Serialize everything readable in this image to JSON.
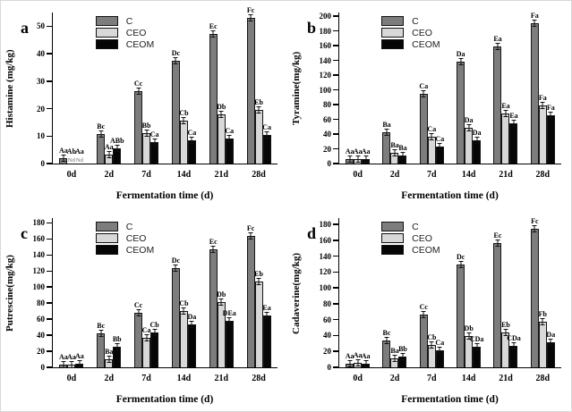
{
  "figure": {
    "colors": {
      "C": "#7d7d7d",
      "CEO": "#d8d8d8",
      "CEOM": "#060606"
    },
    "legend_entries": [
      "C",
      "CEO",
      "CEOM"
    ],
    "legend_position": "top-left-inside",
    "grid": false,
    "error_bars": "small SD caps on bar tops"
  },
  "chart_data": [
    {
      "type": "bar",
      "panel": "a",
      "ylabel": "Histamine (mg/kg)",
      "xlabel": "Fermentation time (d)",
      "categories": [
        "0d",
        "2d",
        "7d",
        "14d",
        "21d",
        "28d"
      ],
      "ylim": [
        0,
        55
      ],
      "yticks": [
        0,
        10,
        20,
        30,
        40,
        50
      ],
      "series": [
        {
          "name": "C",
          "values": [
            2.1,
            10.8,
            26.3,
            37.3,
            47.2,
            53.2
          ],
          "labels": [
            "Aa",
            "Bc",
            "Cc",
            "Dc",
            "Ec",
            "Fc"
          ]
        },
        {
          "name": "CEO",
          "values": [
            0,
            3.2,
            11.0,
            15.5,
            18.0,
            19.5
          ],
          "labels": [
            "Ab",
            "Aa",
            "Bb",
            "Cb",
            "Db",
            "Eb"
          ],
          "nd": [
            "Nd",
            "",
            "",
            "",
            "",
            ""
          ]
        },
        {
          "name": "CEOM",
          "values": [
            0,
            5.4,
            7.8,
            8.5,
            9.2,
            10.5
          ],
          "labels": [
            "Aa",
            "ABb",
            "Ca",
            "Ca",
            "Ca",
            "Ca"
          ],
          "nd": [
            "Nd",
            "",
            "",
            "",
            "",
            ""
          ]
        }
      ]
    },
    {
      "type": "bar",
      "panel": "b",
      "ylabel": "Tyramine(mg/kg)",
      "xlabel": "Fermentation time (d)",
      "categories": [
        "0d",
        "2d",
        "7d",
        "14d",
        "21d",
        "28d"
      ],
      "ylim": [
        0,
        205
      ],
      "yticks": [
        0,
        20,
        40,
        60,
        80,
        100,
        120,
        140,
        160,
        180,
        200
      ],
      "series": [
        {
          "name": "C",
          "values": [
            6,
            42,
            95,
            138,
            159,
            190
          ],
          "labels": [
            "Aa",
            "Ba",
            "Ca",
            "Da",
            "Ea",
            "Fa"
          ]
        },
        {
          "name": "CEO",
          "values": [
            6,
            15,
            36,
            49,
            68,
            79
          ],
          "labels": [
            "Aa",
            "Ba",
            "Ca",
            "Da",
            "Ea",
            "Fa"
          ]
        },
        {
          "name": "CEOM",
          "values": [
            6,
            11,
            23,
            31,
            54,
            66
          ],
          "labels": [
            "Aa",
            "Ba",
            "Ca",
            "Da",
            "Ea",
            "Fa"
          ]
        }
      ]
    },
    {
      "type": "bar",
      "panel": "c",
      "ylabel": "Putrescine(mg/kg)",
      "xlabel": "Fermentation time (d)",
      "categories": [
        "0d",
        "2d",
        "7d",
        "14d",
        "21d",
        "28d"
      ],
      "ylim": [
        0,
        186
      ],
      "yticks": [
        0,
        20,
        40,
        60,
        80,
        100,
        120,
        140,
        160,
        180
      ],
      "series": [
        {
          "name": "C",
          "values": [
            3,
            42,
            68,
            124,
            147,
            164
          ],
          "labels": [
            "Aa",
            "Bc",
            "Cc",
            "Dc",
            "Ec",
            "Fc"
          ]
        },
        {
          "name": "CEO",
          "values": [
            3.5,
            10,
            37,
            70,
            81,
            107
          ],
          "labels": [
            "Aa",
            "Ba",
            "Ca",
            "Cb",
            "Db",
            "Eb"
          ]
        },
        {
          "name": "CEOM",
          "values": [
            4,
            26,
            43,
            54,
            58,
            65
          ],
          "labels": [
            "Aa",
            "Bb",
            "Cb",
            "Da",
            "DEa",
            "Ea"
          ]
        }
      ]
    },
    {
      "type": "bar",
      "panel": "d",
      "ylabel": "Cadaverine(mg/kg)",
      "xlabel": "Fermentation time (d)",
      "categories": [
        "0d",
        "2d",
        "7d",
        "14d",
        "21d",
        "28d"
      ],
      "ylim": [
        0,
        188
      ],
      "yticks": [
        0,
        20,
        40,
        60,
        80,
        100,
        120,
        140,
        160,
        180
      ],
      "series": [
        {
          "name": "C",
          "values": [
            5,
            34,
            66,
            129,
            156,
            175
          ],
          "labels": [
            "Aa",
            "Bc",
            "Cc",
            "Dc",
            "Ec",
            "Fc"
          ]
        },
        {
          "name": "CEO",
          "values": [
            6,
            11,
            28,
            39,
            44,
            57
          ],
          "labels": [
            "Aa",
            "Ba",
            "Cb",
            "Db",
            "Eb",
            "Fb"
          ]
        },
        {
          "name": "CEOM",
          "values": [
            5,
            14,
            21,
            26,
            27,
            31
          ],
          "labels": [
            "Aa",
            "Bb",
            "Ca",
            "CDa",
            "CDa",
            "Da"
          ]
        }
      ]
    }
  ]
}
